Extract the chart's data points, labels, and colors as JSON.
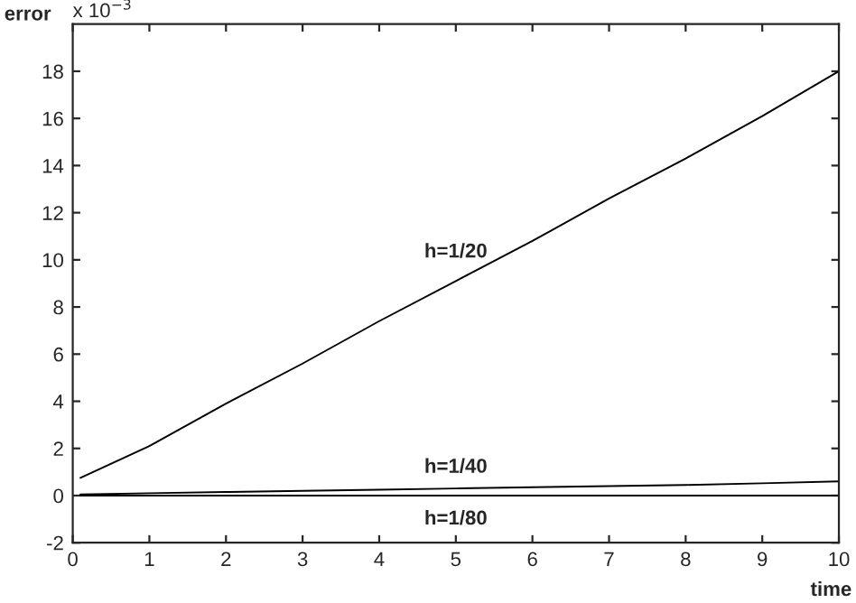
{
  "chart_data": {
    "type": "line",
    "xlabel": "time",
    "ylabel": "error",
    "annotations": [
      "x 10$^{−3}$",
      "h=1/20",
      "h=1/40",
      "h=1/80"
    ],
    "x": [
      0.1,
      1,
      2,
      3,
      4,
      5,
      6,
      7,
      8,
      9,
      10
    ],
    "series": [
      {
        "color": "#000000",
        "values": [
          0.75,
          2.1,
          3.9,
          5.6,
          7.4,
          9.1,
          10.8,
          12.6,
          14.3,
          16.1,
          18.0
        ]
      },
      {
        "color": "#000000",
        "values": [
          0.05,
          0.1,
          0.15,
          0.2,
          0.25,
          0.3,
          0.35,
          0.4,
          0.45,
          0.52,
          0.6
        ]
      },
      {
        "color": "#000000",
        "values": [
          0.0,
          0.0,
          0.0,
          0.0,
          0.0,
          0.0,
          0.0,
          0.0,
          0.0,
          0.0,
          0.0
        ]
      }
    ],
    "xlim": [
      0,
      10
    ],
    "ylim": [
      -2,
      20
    ],
    "xticks": [
      0,
      1,
      2,
      3,
      4,
      5,
      6,
      7,
      8,
      9,
      10
    ],
    "yticks": [
      -2,
      0,
      2,
      4,
      6,
      8,
      10,
      12,
      14,
      16,
      18
    ],
    "grid": false,
    "legend": false,
    "marker": "none",
    "line_style": "solid"
  }
}
